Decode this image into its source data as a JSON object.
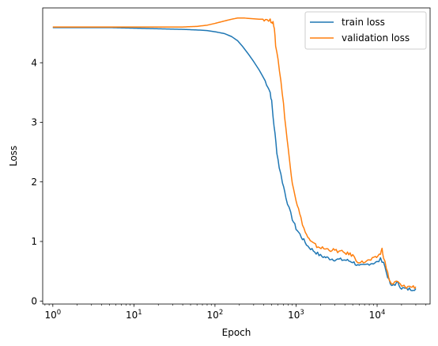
{
  "chart_data": {
    "type": "line",
    "xlabel": "Epoch",
    "ylabel": "Loss",
    "xscale": "log",
    "xlim": [
      0.75,
      45000
    ],
    "ylim": [
      -0.05,
      4.92
    ],
    "grid": false,
    "legend_position": "top-right",
    "x_ticks": [
      {
        "value": 1,
        "base": "10",
        "exp": "0"
      },
      {
        "value": 10,
        "base": "10",
        "exp": "1"
      },
      {
        "value": 100,
        "base": "10",
        "exp": "2"
      },
      {
        "value": 1000,
        "base": "10",
        "exp": "3"
      },
      {
        "value": 10000,
        "base": "10",
        "exp": "4"
      }
    ],
    "y_ticks": [
      {
        "value": 0,
        "label": "0"
      },
      {
        "value": 1,
        "label": "1"
      },
      {
        "value": 2,
        "label": "2"
      },
      {
        "value": 3,
        "label": "3"
      },
      {
        "value": 4,
        "label": "4"
      }
    ],
    "series": [
      {
        "name": "train loss",
        "color": "#1f77b4",
        "points": [
          [
            1,
            4.59
          ],
          [
            2,
            4.59
          ],
          [
            5,
            4.59
          ],
          [
            10,
            4.58
          ],
          [
            20,
            4.57
          ],
          [
            40,
            4.56
          ],
          [
            60,
            4.55
          ],
          [
            80,
            4.54
          ],
          [
            100,
            4.52
          ],
          [
            130,
            4.49
          ],
          [
            160,
            4.44
          ],
          [
            190,
            4.37
          ],
          [
            220,
            4.27
          ],
          [
            260,
            4.14
          ],
          [
            300,
            4.02
          ],
          [
            350,
            3.88
          ],
          [
            400,
            3.74
          ],
          [
            450,
            3.6
          ],
          [
            480,
            3.5
          ],
          [
            500,
            3.35
          ],
          [
            520,
            3.1
          ],
          [
            550,
            2.8
          ],
          [
            580,
            2.5
          ],
          [
            620,
            2.25
          ],
          [
            680,
            2.0
          ],
          [
            750,
            1.75
          ],
          [
            820,
            1.55
          ],
          [
            900,
            1.38
          ],
          [
            1000,
            1.22
          ],
          [
            1200,
            1.05
          ],
          [
            1400,
            0.92
          ],
          [
            1700,
            0.83
          ],
          [
            2000,
            0.76
          ],
          [
            2500,
            0.72
          ],
          [
            3000,
            0.7
          ],
          [
            4000,
            0.69
          ],
          [
            5000,
            0.66
          ],
          [
            6000,
            0.58
          ],
          [
            7000,
            0.6
          ],
          [
            8000,
            0.63
          ],
          [
            9000,
            0.64
          ],
          [
            10000,
            0.65
          ],
          [
            11000,
            0.7
          ],
          [
            12000,
            0.66
          ],
          [
            13000,
            0.48
          ],
          [
            14000,
            0.35
          ],
          [
            15000,
            0.24
          ],
          [
            16000,
            0.28
          ],
          [
            18000,
            0.3
          ],
          [
            20000,
            0.22
          ],
          [
            23000,
            0.2
          ],
          [
            26000,
            0.2
          ],
          [
            30000,
            0.21
          ]
        ]
      },
      {
        "name": "validation loss",
        "color": "#ff7f0e",
        "points": [
          [
            1,
            4.6
          ],
          [
            2,
            4.6
          ],
          [
            5,
            4.6
          ],
          [
            10,
            4.6
          ],
          [
            20,
            4.6
          ],
          [
            40,
            4.6
          ],
          [
            60,
            4.61
          ],
          [
            80,
            4.63
          ],
          [
            100,
            4.66
          ],
          [
            130,
            4.7
          ],
          [
            160,
            4.73
          ],
          [
            190,
            4.75
          ],
          [
            230,
            4.75
          ],
          [
            280,
            4.74
          ],
          [
            350,
            4.73
          ],
          [
            420,
            4.73
          ],
          [
            480,
            4.72
          ],
          [
            500,
            4.65
          ],
          [
            520,
            4.72
          ],
          [
            540,
            4.55
          ],
          [
            560,
            4.3
          ],
          [
            600,
            4.05
          ],
          [
            650,
            3.7
          ],
          [
            700,
            3.3
          ],
          [
            750,
            2.9
          ],
          [
            800,
            2.55
          ],
          [
            850,
            2.25
          ],
          [
            900,
            2.0
          ],
          [
            1000,
            1.7
          ],
          [
            1150,
            1.38
          ],
          [
            1300,
            1.15
          ],
          [
            1500,
            1.0
          ],
          [
            1800,
            0.92
          ],
          [
            2200,
            0.88
          ],
          [
            3000,
            0.85
          ],
          [
            4000,
            0.81
          ],
          [
            5000,
            0.77
          ],
          [
            5500,
            0.68
          ],
          [
            6500,
            0.65
          ],
          [
            8000,
            0.68
          ],
          [
            9500,
            0.72
          ],
          [
            11000,
            0.8
          ],
          [
            11500,
            0.87
          ],
          [
            12000,
            0.75
          ],
          [
            13000,
            0.55
          ],
          [
            14000,
            0.38
          ],
          [
            15000,
            0.28
          ],
          [
            16500,
            0.31
          ],
          [
            18000,
            0.32
          ],
          [
            20000,
            0.25
          ],
          [
            23000,
            0.24
          ],
          [
            26000,
            0.24
          ],
          [
            30000,
            0.24
          ]
        ]
      }
    ]
  }
}
